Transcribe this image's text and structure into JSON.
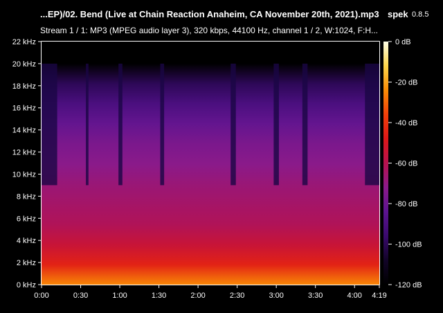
{
  "header": {
    "file_title": "...EP)/02. Bend (Live at Chain Reaction Anaheim, CA November 20th, 2021).mp3",
    "app_name": "spek",
    "app_version": "0.8.5",
    "stream_info": "Stream 1 / 1: MP3 (MPEG audio layer 3), 320 kbps, 44100 Hz, channel 1 / 2, W:1024, F:H..."
  },
  "chart_data": {
    "type": "heatmap",
    "title": "...EP)/02. Bend (Live at Chain Reaction Anaheim, CA November 20th, 2021).mp3",
    "x_axis": {
      "unit": "time",
      "range_seconds": [
        0,
        259
      ],
      "tick_labels": [
        "0:00",
        "0:30",
        "1:00",
        "1:30",
        "2:00",
        "2:30",
        "3:00",
        "3:30",
        "4:00",
        "4:19"
      ],
      "tick_values_seconds": [
        0,
        30,
        60,
        90,
        120,
        150,
        180,
        210,
        240,
        259
      ]
    },
    "y_axis": {
      "unit": "kHz",
      "range": [
        0,
        22
      ],
      "tick_labels": [
        "0 kHz",
        "2 kHz",
        "4 kHz",
        "6 kHz",
        "8 kHz",
        "10 kHz",
        "12 kHz",
        "14 kHz",
        "16 kHz",
        "18 kHz",
        "20 kHz",
        "22 kHz"
      ],
      "tick_values": [
        0,
        2,
        4,
        6,
        8,
        10,
        12,
        14,
        16,
        18,
        20,
        22
      ]
    },
    "colorbar": {
      "unit": "dB",
      "range": [
        -120,
        0
      ],
      "tick_labels": [
        "0 dB",
        "-20 dB",
        "-40 dB",
        "-60 dB",
        "-80 dB",
        "-100 dB",
        "-120 dB"
      ],
      "tick_values": [
        0,
        -20,
        -40,
        -60,
        -80,
        -100,
        -120
      ],
      "colors": [
        "#000000",
        "#120428",
        "#3a0a6e",
        "#5c1490",
        "#8a1a8a",
        "#b8124e",
        "#dd1818",
        "#f2400a",
        "#f98c06",
        "#fdd64a",
        "#ffffe8"
      ]
    },
    "approx_level_db_by_frequency_khz": {
      "0": -25,
      "2": -45,
      "4": -55,
      "6": -62,
      "8": -65,
      "10": -68,
      "12": -72,
      "14": -76,
      "16": -82,
      "18": -90,
      "20": -100,
      "22": -120
    },
    "cutoff_frequency_khz": 20,
    "quiet_passages_seconds": [
      [
        0,
        12
      ],
      [
        34,
        36
      ],
      [
        59,
        62
      ],
      [
        91,
        94
      ],
      [
        145,
        149
      ],
      [
        178,
        182
      ],
      [
        200,
        204
      ],
      [
        248,
        259
      ]
    ],
    "grid": false
  }
}
